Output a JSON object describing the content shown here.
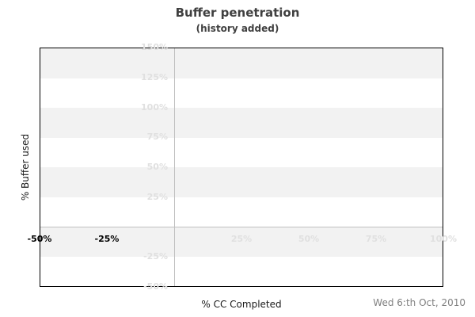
{
  "header": {
    "title": "Buffer penetration",
    "subtitle": "(history added)"
  },
  "axes": {
    "y_title": "% Buffer used",
    "x_title": "% CC Completed"
  },
  "footer": {
    "date": "Wed 6:th Oct, 2010"
  },
  "colors": {
    "band_fill": "#f2f2f2",
    "grid_line": "#c0c0c0",
    "light_tick_label": "#e0e0e0",
    "dark_tick_label": "#000000",
    "plot_border": "#000000",
    "title_text": "#404040",
    "date_text": "#808080"
  },
  "chart_data": {
    "type": "line",
    "title": "Buffer penetration",
    "subtitle": "(history added)",
    "xlabel": "% CC Completed",
    "ylabel": "% Buffer used",
    "xlim": [
      -50,
      100
    ],
    "ylim": [
      -50,
      150
    ],
    "band_step": 25,
    "grid": "alternating horizontal gray bands every 25%, gray zero lines at x=0 and y=0, no vertical gridlines",
    "legend": null,
    "series": [],
    "x_tick_labels": [
      {
        "value": -50,
        "label": "-50%",
        "tone": "dark"
      },
      {
        "value": -25,
        "label": "-25%",
        "tone": "dark"
      },
      {
        "value": 25,
        "label": "25%",
        "tone": "light"
      },
      {
        "value": 50,
        "label": "50%",
        "tone": "light"
      },
      {
        "value": 75,
        "label": "75%",
        "tone": "light"
      },
      {
        "value": 100,
        "label": "100%",
        "tone": "light"
      }
    ],
    "y_tick_labels": [
      {
        "value": 150,
        "label": "150%"
      },
      {
        "value": 125,
        "label": "125%"
      },
      {
        "value": 100,
        "label": "100%"
      },
      {
        "value": 75,
        "label": "75%"
      },
      {
        "value": 50,
        "label": "50%"
      },
      {
        "value": 25,
        "label": "25%"
      },
      {
        "value": -25,
        "label": "-25%"
      },
      {
        "value": -50,
        "label": "-50%"
      }
    ],
    "annotations": [
      {
        "text": "Wed 6:th Oct, 2010",
        "position": "bottom-right"
      }
    ]
  }
}
